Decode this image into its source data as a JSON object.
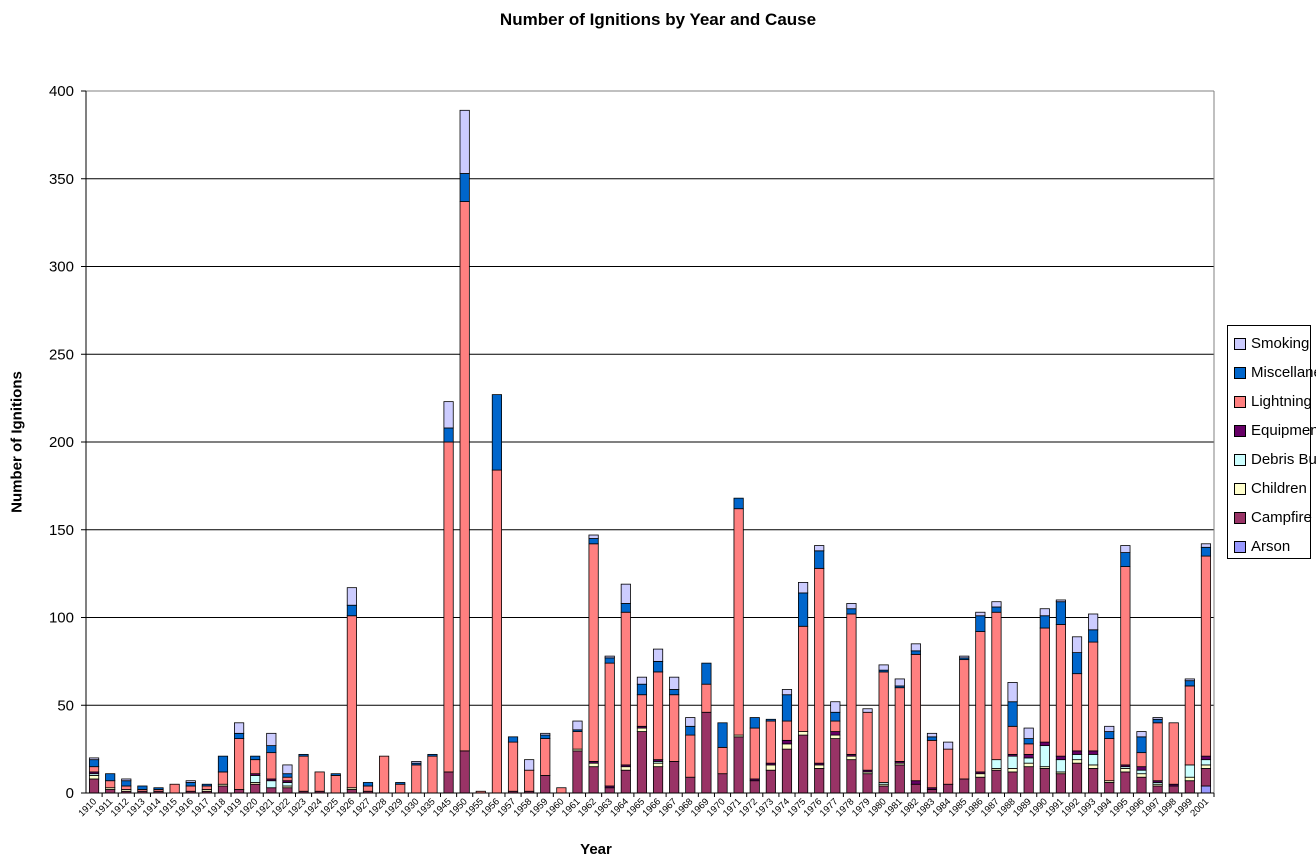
{
  "chart_data": {
    "type": "bar",
    "stacked": true,
    "title": "Number of Ignitions by Year and Cause",
    "xlabel": "Year",
    "ylabel": "Number of Ignitions",
    "ylim": [
      0,
      400
    ],
    "yticks": [
      0,
      50,
      100,
      150,
      200,
      250,
      300,
      350,
      400
    ],
    "grid": true,
    "legend_position": "right",
    "categories": [
      "1910",
      "1911",
      "1912",
      "1913",
      "1914",
      "1915",
      "1916",
      "1917",
      "1918",
      "1919",
      "1920",
      "1921",
      "1922",
      "1923",
      "1924",
      "1925",
      "1926",
      "1927",
      "1928",
      "1929",
      "1930",
      "1935",
      "1945",
      "1950",
      "1955",
      "1956",
      "1957",
      "1958",
      "1959",
      "1960",
      "1961",
      "1962",
      "1963",
      "1964",
      "1965",
      "1966",
      "1967",
      "1968",
      "1969",
      "1970",
      "1971",
      "1972",
      "1973",
      "1974",
      "1975",
      "1976",
      "1977",
      "1978",
      "1979",
      "1980",
      "1981",
      "1982",
      "1983",
      "1984",
      "1985",
      "1986",
      "1987",
      "1988",
      "1989",
      "1990",
      "1991",
      "1992",
      "1993",
      "1994",
      "1995",
      "1996",
      "1997",
      "1998",
      "1999",
      "2001"
    ],
    "series": [
      {
        "name": "Arson",
        "color": "#9999FF",
        "values": [
          0,
          0,
          0,
          0,
          0,
          0,
          0,
          0,
          0,
          0,
          0,
          0,
          0,
          0,
          0,
          0,
          0,
          0,
          0,
          0,
          0,
          0,
          0,
          0,
          0,
          0,
          0,
          0,
          0,
          0,
          0,
          0,
          0,
          0,
          0,
          0,
          0,
          0,
          0,
          0,
          0,
          0,
          0,
          0,
          0,
          0,
          0,
          0,
          0,
          0,
          0,
          0,
          0,
          0,
          0,
          0,
          0,
          0,
          0,
          0,
          0,
          0,
          0,
          0,
          0,
          0,
          0,
          0,
          0,
          4
        ]
      },
      {
        "name": "Campfire",
        "color": "#993366",
        "values": [
          8,
          2,
          1,
          1,
          1,
          0,
          1,
          1,
          4,
          2,
          5,
          3,
          3,
          1,
          1,
          0,
          2,
          1,
          0,
          0,
          0,
          0,
          12,
          24,
          0,
          0,
          1,
          1,
          10,
          0,
          24,
          15,
          3,
          13,
          35,
          15,
          18,
          9,
          46,
          11,
          32,
          7,
          13,
          25,
          33,
          14,
          31,
          19,
          11,
          4,
          16,
          5,
          2,
          5,
          8,
          9,
          13,
          12,
          15,
          14,
          11,
          17,
          14,
          6,
          12,
          9,
          4,
          4,
          7,
          10
        ]
      },
      {
        "name": "Children",
        "color": "#FFFFCC",
        "values": [
          2,
          1,
          1,
          0,
          0,
          0,
          0,
          1,
          1,
          0,
          1,
          0,
          1,
          0,
          0,
          0,
          1,
          0,
          0,
          0,
          0,
          0,
          0,
          0,
          0,
          0,
          0,
          0,
          0,
          0,
          1,
          2,
          0,
          2,
          2,
          2,
          0,
          0,
          0,
          0,
          1,
          0,
          3,
          3,
          2,
          2,
          2,
          2,
          1,
          1,
          1,
          0,
          0,
          0,
          0,
          2,
          1,
          2,
          2,
          1,
          1,
          2,
          2,
          1,
          2,
          2,
          1,
          0,
          2,
          2
        ]
      },
      {
        "name": "Debris Burning",
        "color": "#CCFFFF",
        "values": [
          1,
          0,
          0,
          0,
          0,
          0,
          0,
          0,
          0,
          0,
          4,
          4,
          2,
          0,
          0,
          0,
          0,
          0,
          0,
          0,
          0,
          0,
          0,
          0,
          0,
          0,
          0,
          0,
          0,
          0,
          0,
          0,
          0,
          0,
          0,
          1,
          0,
          0,
          0,
          0,
          0,
          0,
          0,
          0,
          0,
          0,
          0,
          0,
          0,
          1,
          0,
          0,
          0,
          0,
          0,
          0,
          5,
          7,
          3,
          12,
          7,
          3,
          6,
          0,
          1,
          2,
          1,
          0,
          7,
          3
        ]
      },
      {
        "name": "Equipment",
        "color": "#660066",
        "values": [
          1,
          0,
          0,
          0,
          0,
          0,
          0,
          0,
          0,
          0,
          1,
          1,
          1,
          0,
          0,
          0,
          0,
          0,
          0,
          0,
          0,
          0,
          0,
          0,
          0,
          0,
          0,
          0,
          0,
          0,
          0,
          1,
          1,
          1,
          1,
          1,
          0,
          0,
          0,
          0,
          0,
          1,
          1,
          2,
          0,
          1,
          2,
          1,
          1,
          0,
          1,
          2,
          1,
          0,
          0,
          1,
          0,
          1,
          2,
          2,
          2,
          2,
          2,
          0,
          1,
          2,
          1,
          1,
          0,
          2
        ]
      },
      {
        "name": "Lightning",
        "color": "#FF8080",
        "values": [
          3,
          4,
          2,
          1,
          1,
          5,
          3,
          2,
          7,
          29,
          8,
          15,
          2,
          20,
          11,
          10,
          98,
          3,
          21,
          5,
          16,
          21,
          188,
          313,
          1,
          184,
          28,
          12,
          21,
          3,
          10,
          124,
          70,
          87,
          18,
          50,
          38,
          24,
          16,
          15,
          129,
          29,
          24,
          11,
          60,
          111,
          6,
          80,
          33,
          63,
          42,
          72,
          27,
          20,
          68,
          80,
          84,
          16,
          6,
          65,
          75,
          44,
          62,
          24,
          113,
          8,
          33,
          35,
          45,
          114
        ]
      },
      {
        "name": "Miscellaneous",
        "color": "#0066CC",
        "values": [
          4,
          4,
          3,
          2,
          1,
          0,
          2,
          1,
          9,
          3,
          2,
          4,
          2,
          1,
          0,
          1,
          6,
          2,
          0,
          1,
          1,
          1,
          8,
          16,
          0,
          43,
          3,
          0,
          2,
          0,
          1,
          3,
          3,
          5,
          6,
          6,
          3,
          5,
          12,
          14,
          6,
          6,
          1,
          15,
          19,
          10,
          5,
          3,
          0,
          1,
          1,
          2,
          2,
          0,
          1,
          9,
          3,
          14,
          3,
          7,
          13,
          12,
          7,
          4,
          8,
          9,
          2,
          0,
          3,
          5
        ]
      },
      {
        "name": "Smoking",
        "color": "#CCCCFF",
        "values": [
          1,
          0,
          1,
          0,
          0,
          0,
          1,
          0,
          0,
          6,
          0,
          7,
          5,
          0,
          0,
          0,
          10,
          0,
          0,
          0,
          1,
          0,
          15,
          36,
          0,
          0,
          0,
          6,
          1,
          0,
          5,
          2,
          1,
          11,
          4,
          7,
          7,
          5,
          0,
          0,
          0,
          0,
          0,
          3,
          6,
          3,
          6,
          3,
          2,
          3,
          4,
          4,
          2,
          4,
          1,
          2,
          3,
          11,
          6,
          4,
          1,
          9,
          9,
          3,
          4,
          3,
          1,
          0,
          1,
          2
        ]
      }
    ]
  }
}
